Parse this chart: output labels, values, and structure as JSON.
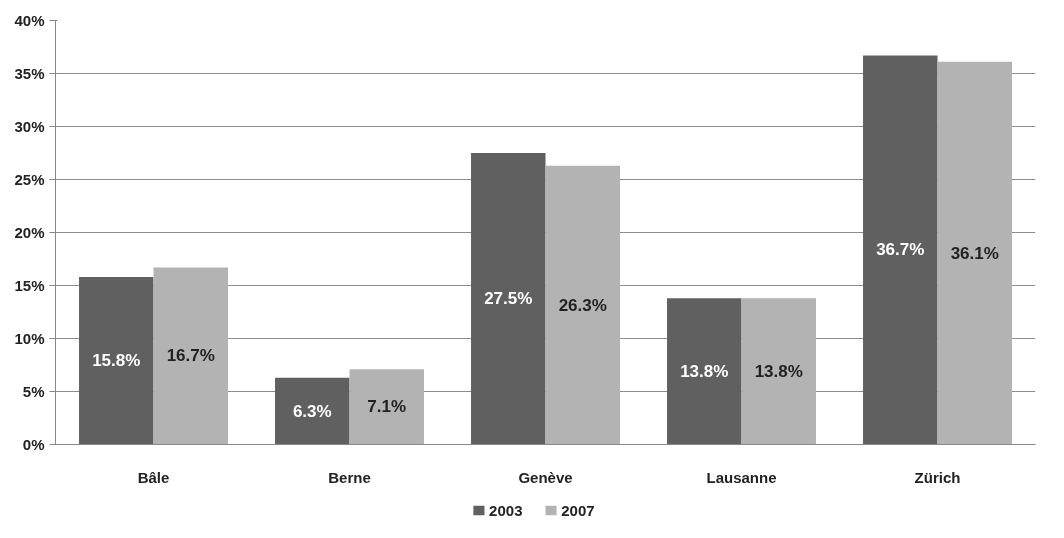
{
  "chart_data": {
    "type": "bar",
    "categories": [
      "Bâle",
      "Berne",
      "Genève",
      "Lausanne",
      "Zürich"
    ],
    "series": [
      {
        "name": "2003",
        "color": "#606060",
        "values": [
          15.8,
          6.3,
          27.5,
          13.8,
          36.7
        ],
        "value_labels": [
          "15.8%",
          "6.3%",
          "27.5%",
          "13.8%",
          "36.7%"
        ]
      },
      {
        "name": "2007",
        "color": "#b3b3b3",
        "values": [
          16.7,
          7.1,
          26.3,
          13.8,
          36.1
        ],
        "value_labels": [
          "16.7%",
          "7.1%",
          "26.3%",
          "13.8%",
          "36.1%"
        ]
      }
    ],
    "ylim": [
      0,
      40
    ],
    "yticks": [
      {
        "value": 0,
        "label": "0%"
      },
      {
        "value": 5,
        "label": "5%"
      },
      {
        "value": 10,
        "label": "10%"
      },
      {
        "value": 15,
        "label": "15%"
      },
      {
        "value": 20,
        "label": "20%"
      },
      {
        "value": 25,
        "label": "25%"
      },
      {
        "value": 30,
        "label": "30%"
      },
      {
        "value": 35,
        "label": "35%"
      },
      {
        "value": 40,
        "label": "40%"
      }
    ],
    "grid": "y",
    "legend": "bottom"
  }
}
